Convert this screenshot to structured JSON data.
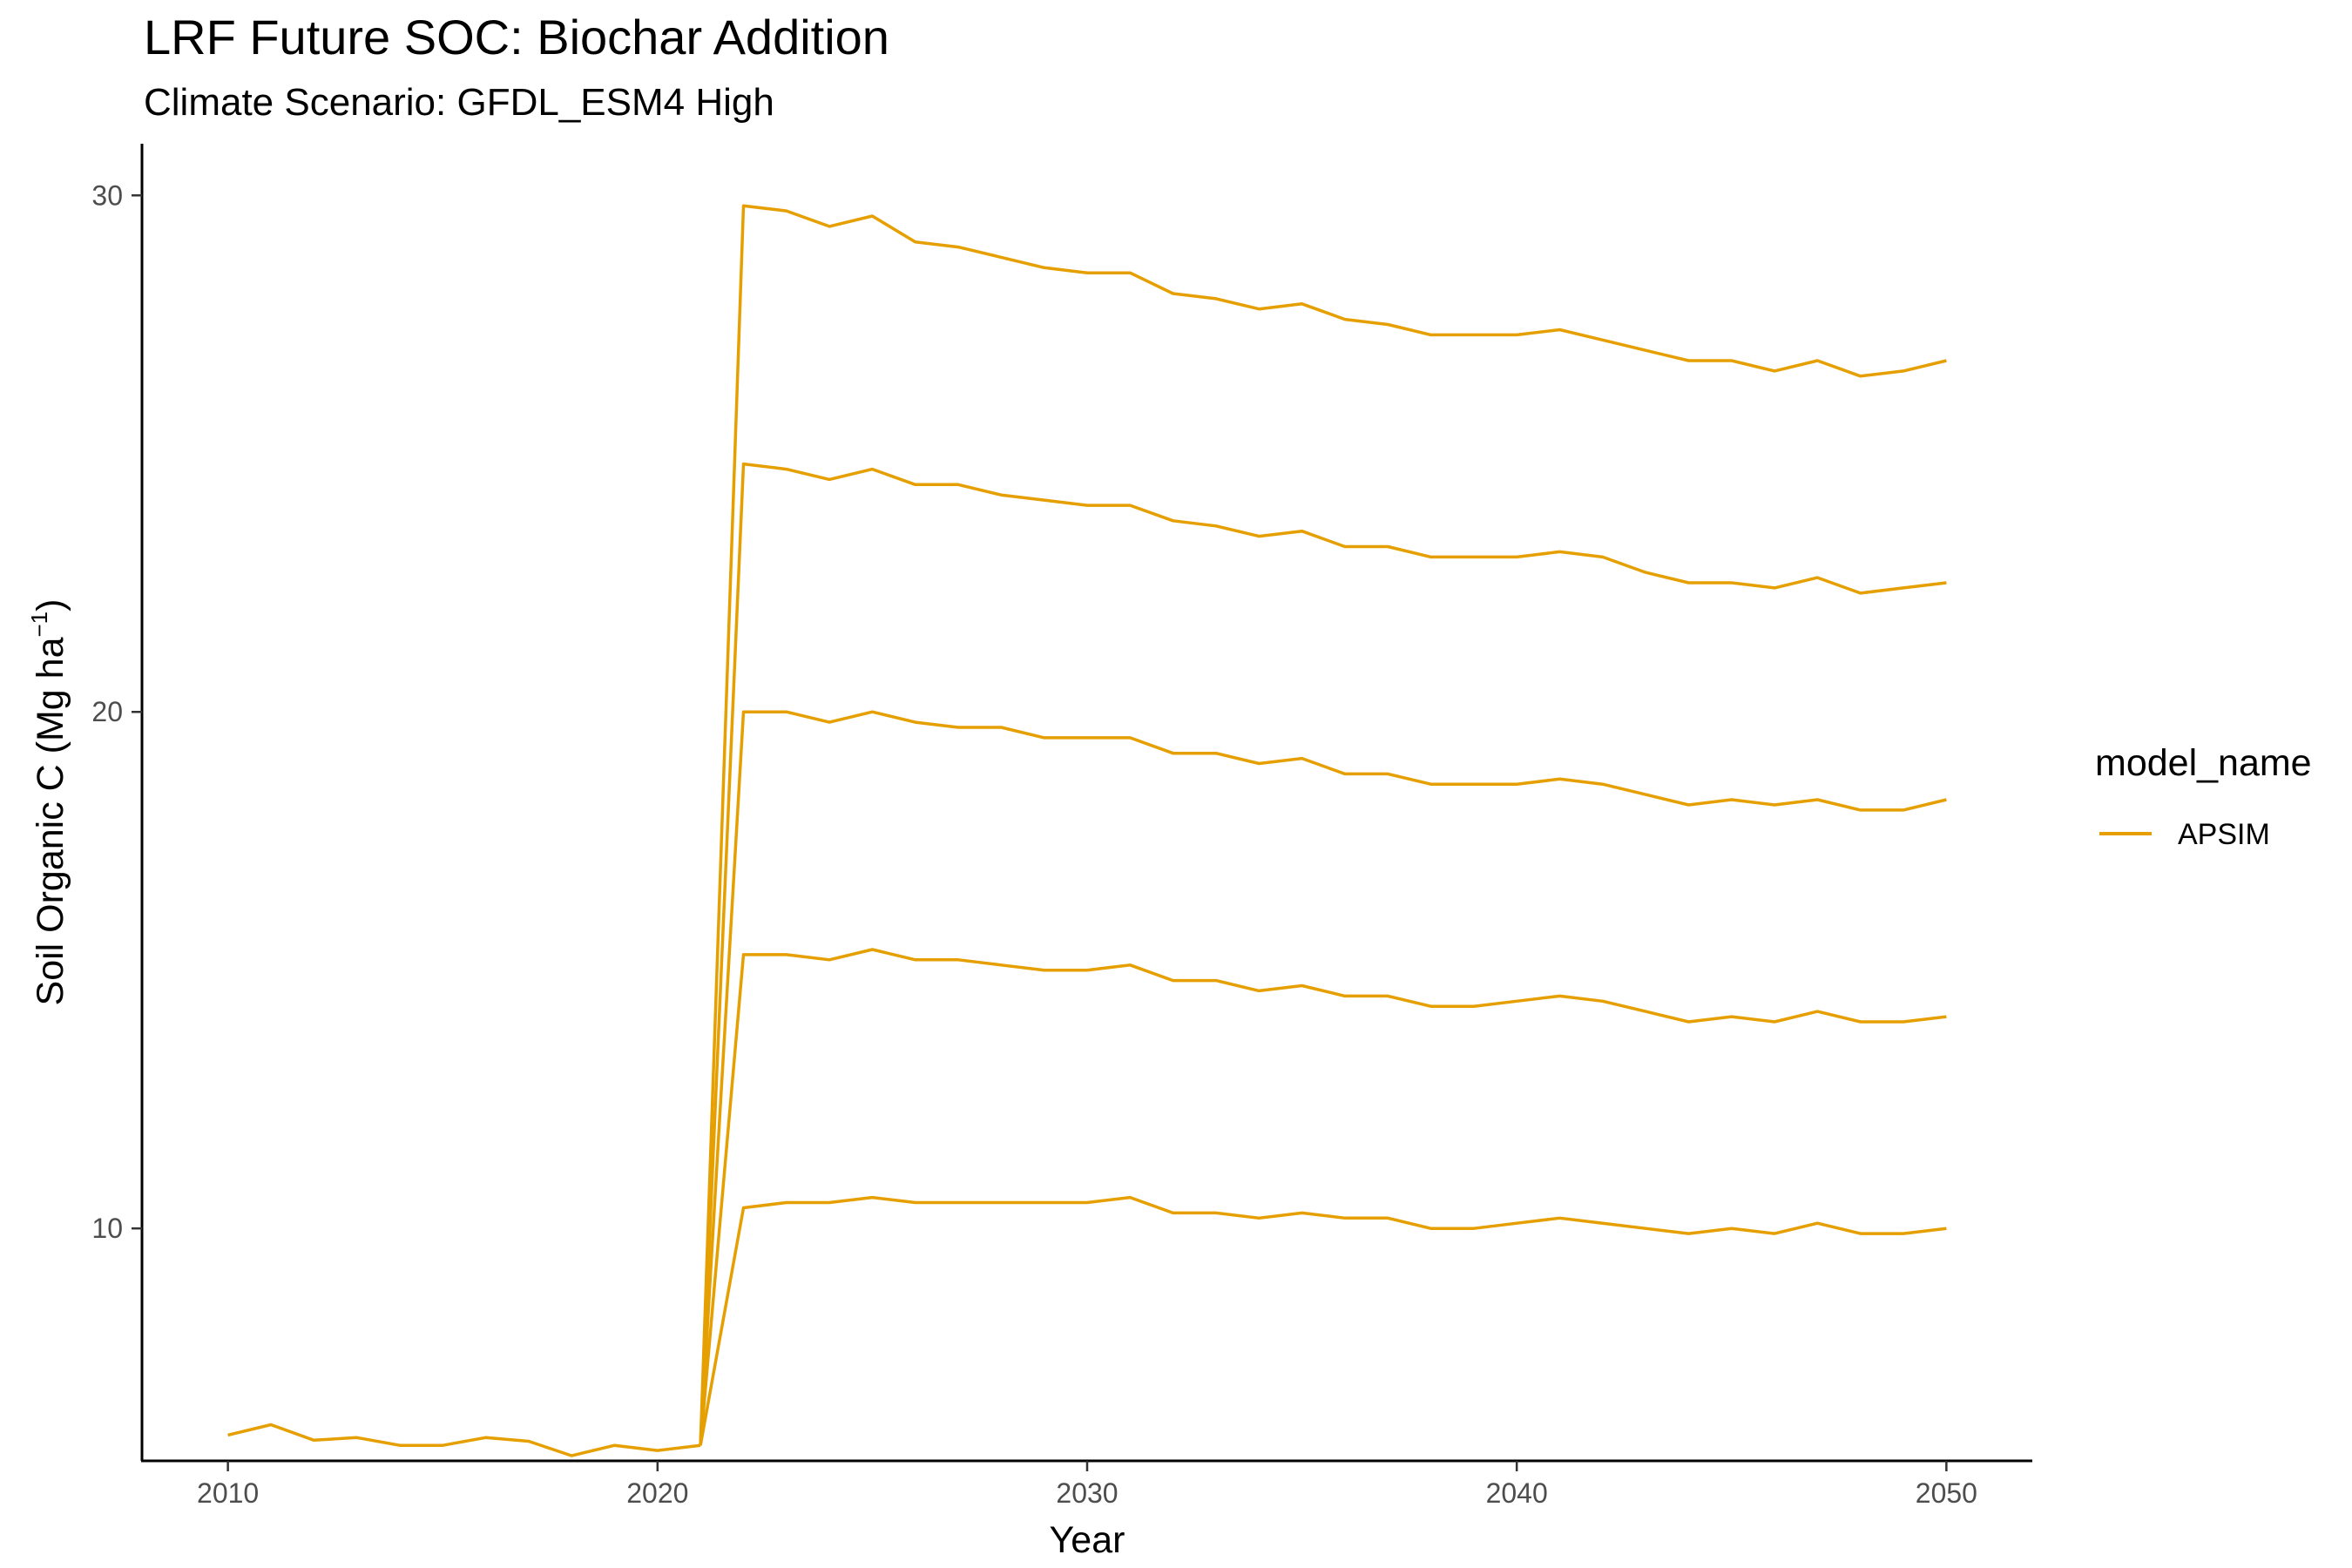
{
  "chart_data": {
    "type": "line",
    "title": "LRF  Future SOC: Biochar Addition",
    "subtitle": "Climate Scenario: GFDL_ESM4 High",
    "xlabel": "Year",
    "ylabel_main": "Soil Organic C (Mg ha",
    "ylabel_sup": "−1",
    "ylabel_close": ")",
    "xlim": [
      2008,
      2052
    ],
    "ylim": [
      5.5,
      31
    ],
    "xticks": [
      "2010",
      "2020",
      "2030",
      "2040",
      "2050"
    ],
    "yticks": [
      "10",
      "20",
      "30"
    ],
    "grid": false,
    "legend": {
      "title": "model_name",
      "entries": [
        "APSIM"
      ],
      "position": "right"
    },
    "color": "#E69F00",
    "baseline": {
      "x": [
        2010,
        2011,
        2012,
        2013,
        2014,
        2015,
        2016,
        2017,
        2018,
        2019,
        2020,
        2021
      ],
      "y": [
        6.0,
        6.2,
        5.9,
        5.95,
        5.8,
        5.8,
        5.95,
        5.88,
        5.6,
        5.8,
        5.7,
        5.8
      ]
    },
    "x": [
      2021,
      2022,
      2023,
      2024,
      2025,
      2026,
      2027,
      2028,
      2029,
      2030,
      2031,
      2032,
      2033,
      2034,
      2035,
      2036,
      2037,
      2038,
      2039,
      2040,
      2041,
      2042,
      2043,
      2044,
      2045,
      2046,
      2047,
      2048,
      2049,
      2050
    ],
    "series": [
      {
        "name": "APSIM",
        "values": [
          5.8,
          29.8,
          29.7,
          29.4,
          29.6,
          29.1,
          29.0,
          28.8,
          28.6,
          28.5,
          28.5,
          28.1,
          28.0,
          27.8,
          27.9,
          27.6,
          27.5,
          27.3,
          27.3,
          27.3,
          27.4,
          27.2,
          27.0,
          26.8,
          26.8,
          26.6,
          26.8,
          26.5,
          26.6,
          26.8
        ]
      },
      {
        "name": "APSIM",
        "values": [
          5.8,
          24.8,
          24.7,
          24.5,
          24.7,
          24.4,
          24.4,
          24.2,
          24.1,
          24.0,
          24.0,
          23.7,
          23.6,
          23.4,
          23.5,
          23.2,
          23.2,
          23.0,
          23.0,
          23.0,
          23.1,
          23.0,
          22.7,
          22.5,
          22.5,
          22.4,
          22.6,
          22.3,
          22.4,
          22.5
        ]
      },
      {
        "name": "APSIM",
        "values": [
          5.8,
          20.0,
          20.0,
          19.8,
          20.0,
          19.8,
          19.7,
          19.7,
          19.5,
          19.5,
          19.5,
          19.2,
          19.2,
          19.0,
          19.1,
          18.8,
          18.8,
          18.6,
          18.6,
          18.6,
          18.7,
          18.6,
          18.4,
          18.2,
          18.3,
          18.2,
          18.3,
          18.1,
          18.1,
          18.3
        ]
      },
      {
        "name": "APSIM",
        "values": [
          5.8,
          15.3,
          15.3,
          15.2,
          15.4,
          15.2,
          15.2,
          15.1,
          15.0,
          15.0,
          15.1,
          14.8,
          14.8,
          14.6,
          14.7,
          14.5,
          14.5,
          14.3,
          14.3,
          14.4,
          14.5,
          14.4,
          14.2,
          14.0,
          14.1,
          14.0,
          14.2,
          14.0,
          14.0,
          14.1
        ]
      },
      {
        "name": "APSIM",
        "values": [
          5.8,
          10.4,
          10.5,
          10.5,
          10.6,
          10.5,
          10.5,
          10.5,
          10.5,
          10.5,
          10.6,
          10.3,
          10.3,
          10.2,
          10.3,
          10.2,
          10.2,
          10.0,
          10.0,
          10.1,
          10.2,
          10.1,
          10.0,
          9.9,
          10.0,
          9.9,
          10.1,
          9.9,
          9.9,
          10.0
        ]
      }
    ]
  }
}
